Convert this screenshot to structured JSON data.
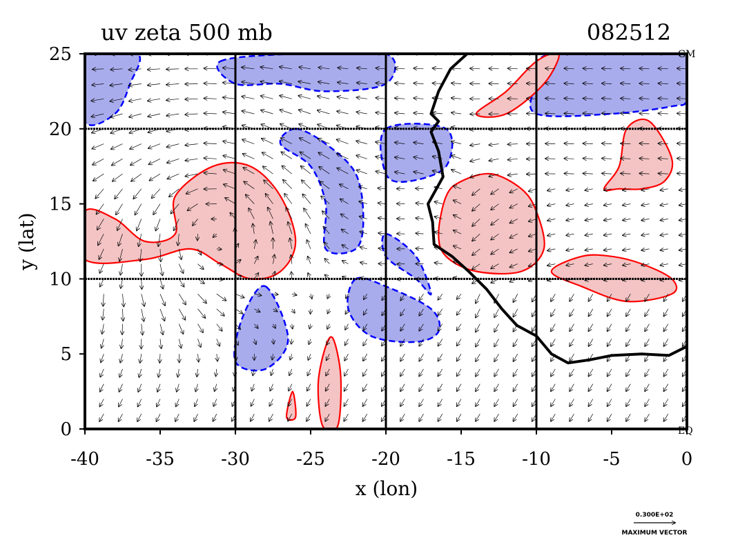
{
  "chart_data": {
    "type": "contour",
    "title": "uv zeta 500 mb",
    "date_label": "082512",
    "xlabel": "x (lon)",
    "ylabel": "y (lat)",
    "xlim": [
      -40,
      0
    ],
    "ylim": [
      0,
      25
    ],
    "x_ticks": [
      -40,
      -35,
      -30,
      -25,
      -20,
      -15,
      -10,
      -5,
      0
    ],
    "y_ticks": [
      0,
      5,
      10,
      15,
      20,
      25
    ],
    "grid_x": [
      -30,
      -20,
      -10
    ],
    "grid_y": [
      10,
      20
    ],
    "top_right_label": "GM",
    "bottom_right_label": "EQ",
    "legend": {
      "value": "0.300E+02",
      "caption": "MAXIMUM VECTOR"
    },
    "colors": {
      "positive_fill": "#f4c4c4",
      "positive_line": "#ff0000",
      "negative_fill": "#a9acec",
      "negative_line": "#0000ff",
      "coast": "#000000",
      "vector": "#000000"
    },
    "vector_field": {
      "dx": 1.25,
      "dy": 1.0,
      "features": [
        {
          "type": "cyclone",
          "lon": -31.5,
          "lat": 14.5
        },
        {
          "type": "trough",
          "lon": -14,
          "lat": 14
        },
        {
          "type": "easterly_flow",
          "lat_range": [
            17,
            25
          ]
        }
      ]
    },
    "positive_regions": [
      {
        "name": "easterly wave vortex",
        "points": [
          [
            -40,
            14.5
          ],
          [
            -38,
            14
          ],
          [
            -36,
            12.5
          ],
          [
            -34,
            13
          ],
          [
            -34,
            15.5
          ],
          [
            -31.5,
            17.5
          ],
          [
            -29,
            17.5
          ],
          [
            -27,
            15.5
          ],
          [
            -26,
            12.5
          ],
          [
            -27,
            10.5
          ],
          [
            -29,
            10
          ],
          [
            -31,
            11
          ],
          [
            -33,
            12
          ],
          [
            -36,
            11.3
          ],
          [
            -40,
            11.3
          ]
        ]
      },
      {
        "name": "coastal band",
        "points": [
          [
            -16.5,
            13
          ],
          [
            -16,
            15.5
          ],
          [
            -15,
            16.5
          ],
          [
            -13,
            17
          ],
          [
            -11,
            16
          ],
          [
            -10,
            14.5
          ],
          [
            -9.5,
            12
          ],
          [
            -11,
            10.5
          ],
          [
            -14,
            10.5
          ],
          [
            -16,
            11.5
          ]
        ]
      },
      {
        "name": "north-east patch",
        "points": [
          [
            -5.5,
            16
          ],
          [
            -4.5,
            17.5
          ],
          [
            -4,
            20
          ],
          [
            -2.5,
            20.5
          ],
          [
            -1,
            18
          ],
          [
            -1.5,
            16.5
          ],
          [
            -3,
            16
          ],
          [
            -4.5,
            16
          ]
        ]
      },
      {
        "name": "top patch",
        "points": [
          [
            -14,
            21
          ],
          [
            -12,
            22.5
          ],
          [
            -10,
            24.5
          ],
          [
            -8.5,
            25
          ],
          [
            -9.5,
            23
          ],
          [
            -12,
            21
          ]
        ]
      },
      {
        "name": "southern streak",
        "points": [
          [
            -23.5,
            6
          ],
          [
            -23,
            3.5
          ],
          [
            -23.2,
            0.2
          ],
          [
            -24.2,
            0.2
          ],
          [
            -24.5,
            3
          ],
          [
            -24,
            5.5
          ]
        ]
      },
      {
        "name": "small streak",
        "points": [
          [
            -26.2,
            2.5
          ],
          [
            -26,
            0.8
          ],
          [
            -26.6,
            0.8
          ]
        ]
      },
      {
        "name": "east band",
        "points": [
          [
            -9,
            10.5
          ],
          [
            -7,
            11.5
          ],
          [
            -5,
            11.5
          ],
          [
            -3,
            11
          ],
          [
            -1,
            10
          ],
          [
            -1,
            9
          ],
          [
            -4,
            8.5
          ],
          [
            -7,
            9.5
          ]
        ]
      }
    ],
    "negative_regions": [
      {
        "name": "north-west",
        "points": [
          [
            -40,
            25
          ],
          [
            -36.5,
            25
          ],
          [
            -37,
            23
          ],
          [
            -38,
            21
          ],
          [
            -40,
            20.5
          ]
        ]
      },
      {
        "name": "top band",
        "points": [
          [
            -31,
            24.5
          ],
          [
            -26,
            25
          ],
          [
            -20,
            25
          ],
          [
            -20,
            23
          ],
          [
            -24,
            22.5
          ],
          [
            -27,
            23
          ],
          [
            -30,
            23
          ]
        ]
      },
      {
        "name": "central arc",
        "points": [
          [
            -26,
            20
          ],
          [
            -24,
            19
          ],
          [
            -22,
            17
          ],
          [
            -21.5,
            14
          ],
          [
            -22,
            12
          ],
          [
            -24,
            12
          ],
          [
            -24,
            15
          ],
          [
            -25,
            17.5
          ],
          [
            -27,
            19
          ]
        ]
      },
      {
        "name": "south lobe",
        "points": [
          [
            -22,
            10
          ],
          [
            -20,
            9.5
          ],
          [
            -17,
            8
          ],
          [
            -16.5,
            6.5
          ],
          [
            -18,
            5.8
          ],
          [
            -21,
            6.2
          ],
          [
            -22.5,
            8
          ]
        ]
      },
      {
        "name": "west arc",
        "points": [
          [
            -28,
            9.5
          ],
          [
            -26.5,
            6
          ],
          [
            -28,
            4
          ],
          [
            -30,
            4.5
          ],
          [
            -29.5,
            7.5
          ]
        ]
      },
      {
        "name": "north-east block",
        "points": [
          [
            -10,
            21
          ],
          [
            -5,
            21
          ],
          [
            -1,
            21.5
          ],
          [
            0,
            22
          ],
          [
            0,
            25
          ],
          [
            -9,
            25
          ],
          [
            -10,
            23
          ]
        ]
      },
      {
        "name": "north strip",
        "points": [
          [
            -20,
            20
          ],
          [
            -16,
            20
          ],
          [
            -16,
            17.5
          ],
          [
            -18.5,
            16.5
          ],
          [
            -20,
            17
          ]
        ]
      },
      {
        "name": "coast strip",
        "points": [
          [
            -20,
            13
          ],
          [
            -18,
            11.5
          ],
          [
            -17,
            9
          ],
          [
            -18,
            10
          ],
          [
            -20,
            11.5
          ]
        ]
      }
    ],
    "coastline": [
      [
        -14.6,
        25
      ],
      [
        -15.7,
        24
      ],
      [
        -16.5,
        22.5
      ],
      [
        -17,
        21
      ],
      [
        -16.5,
        20.5
      ],
      [
        -17,
        19.8
      ],
      [
        -16.5,
        18.5
      ],
      [
        -16.2,
        16.8
      ],
      [
        -17.2,
        15
      ],
      [
        -16.9,
        13.8
      ],
      [
        -16.8,
        12.3
      ],
      [
        -15.6,
        11.5
      ],
      [
        -14.5,
        10.5
      ],
      [
        -13.3,
        9.3
      ],
      [
        -12.3,
        8
      ],
      [
        -11.3,
        6.9
      ],
      [
        -10,
        6.2
      ],
      [
        -9,
        5
      ],
      [
        -7.9,
        4.4
      ],
      [
        -6.5,
        4.6
      ],
      [
        -5,
        4.9
      ],
      [
        -3,
        5
      ],
      [
        -1.2,
        4.9
      ],
      [
        0,
        5.5
      ]
    ]
  }
}
